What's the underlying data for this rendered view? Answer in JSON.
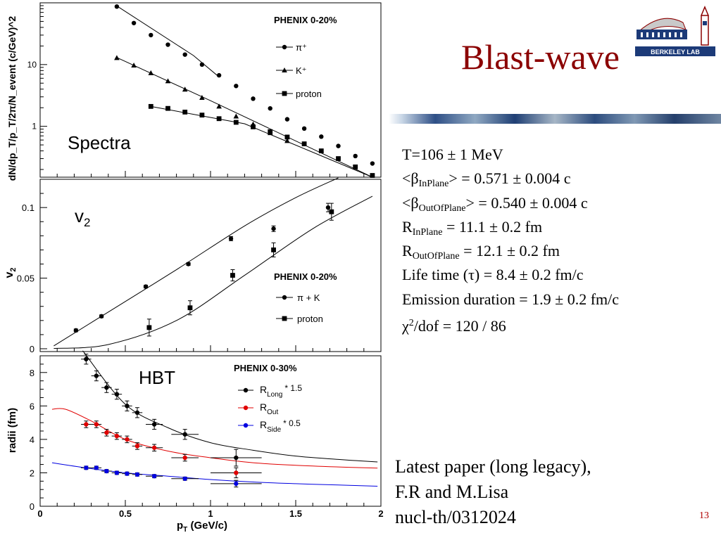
{
  "slide": {
    "title": "Blast-wave",
    "logo_text": "BERKELEY LAB",
    "page_number": "13"
  },
  "parameters": [
    {
      "main": "T=106 ± 1 MeV"
    },
    {
      "pre": "<β",
      "sub": "InPlane",
      "post": "> = 0.571 ± 0.004 c"
    },
    {
      "pre": "<β",
      "sub": "OutOfPlane",
      "post": "> = 0.540 ± 0.004 c"
    },
    {
      "pre": "R",
      "sub": "InPlane",
      "post": " = 11.1 ± 0.2 fm"
    },
    {
      "pre": "R",
      "sub": "OutOfPlane",
      "post": " = 12.1 ± 0.2 fm"
    },
    {
      "main": "Life time (τ) = 8.4 ± 0.2 fm/c"
    },
    {
      "main": "Emission duration = 1.9 ± 0.2 fm/c"
    },
    {
      "pre": "χ",
      "sup": "2",
      "post": "/dof = 120 / 86"
    }
  ],
  "paper_note": [
    "Latest paper (long legacy),",
    "F.R and M.Lisa",
    "nucl-th/0312024"
  ],
  "colors": {
    "title": "#8b0000",
    "page_number": "#b00000",
    "red_series": "#e00000",
    "blue_series": "#0000e0"
  },
  "chart_data": [
    {
      "type": "scatter",
      "label": "Spectra",
      "legend_title": "PHENIX 0-20%",
      "legend_position": "top-right",
      "ylabel": "dN/dp_T/p_T/2π/N_event (c/GeV)^2",
      "yscale": "log",
      "xlim": [
        0,
        2
      ],
      "ylim": [
        0.15,
        100
      ],
      "y_ticks": [
        {
          "v": 1,
          "label": "1"
        },
        {
          "v": 10,
          "label": "10"
        }
      ],
      "series": [
        {
          "name": "π⁺",
          "marker": "circle",
          "x": [
            0.45,
            0.55,
            0.65,
            0.75,
            0.85,
            0.95,
            1.05,
            1.15,
            1.25,
            1.35,
            1.45,
            1.55,
            1.65,
            1.75,
            1.85,
            1.95
          ],
          "y": [
            87,
            47,
            30,
            21,
            14.5,
            10.0,
            6.7,
            4.5,
            2.8,
            1.95,
            1.3,
            0.92,
            0.68,
            0.48,
            0.33,
            0.25
          ]
        },
        {
          "name": "K⁺",
          "marker": "triangle",
          "x": [
            0.45,
            0.55,
            0.65,
            0.75,
            0.85,
            0.95,
            1.05,
            1.15,
            1.25,
            1.35,
            1.45
          ],
          "y": [
            12.8,
            9.7,
            7.3,
            5.4,
            3.95,
            2.9,
            2.1,
            1.45,
            1.08,
            0.78,
            0.58
          ]
        },
        {
          "name": "proton",
          "marker": "square",
          "x": [
            0.65,
            0.75,
            0.85,
            0.95,
            1.05,
            1.15,
            1.25,
            1.35,
            1.45,
            1.55,
            1.65,
            1.75,
            1.85,
            1.95
          ],
          "y": [
            2.1,
            1.95,
            1.7,
            1.52,
            1.33,
            1.16,
            0.98,
            0.82,
            0.67,
            0.52,
            0.4,
            0.3,
            0.22,
            0.16
          ]
        }
      ],
      "fit_lines": [
        {
          "series": "π⁺",
          "x": [
            0.45,
            0.9,
            1.05
          ],
          "y": [
            89,
            14,
            6.3
          ]
        },
        {
          "series": "K⁺",
          "x": [
            0.45,
            1.0,
            1.95
          ],
          "y": [
            13,
            2.6,
            0.15
          ]
        },
        {
          "series": "proton",
          "x": [
            0.65,
            1.2,
            1.95
          ],
          "y": [
            2.1,
            1.1,
            0.15
          ]
        }
      ]
    },
    {
      "type": "scatter",
      "label": "v",
      "label_sub": "2",
      "legend_title": "PHENIX 0-20%",
      "legend_position": "bottom-right",
      "ylabel": "v",
      "ylabel_sub": "2",
      "xlim": [
        0,
        2
      ],
      "ylim": [
        -0.002,
        0.12
      ],
      "y_ticks": [
        {
          "v": 0,
          "label": "0"
        },
        {
          "v": 0.05,
          "label": "0.05"
        },
        {
          "v": 0.1,
          "label": "0.1"
        }
      ],
      "series": [
        {
          "name": "π + K",
          "marker": "circle",
          "x": [
            0.21,
            0.36,
            0.62,
            0.87,
            1.12,
            1.37,
            1.69
          ],
          "y": [
            0.013,
            0.023,
            0.044,
            0.06,
            0.078,
            0.085,
            0.1
          ],
          "err": [
            0.001,
            0.001,
            0.001,
            0.001,
            0.0015,
            0.002,
            0.003
          ]
        },
        {
          "name": "proton",
          "marker": "square",
          "x": [
            0.64,
            0.88,
            1.13,
            1.37,
            1.71
          ],
          "y": [
            0.015,
            0.029,
            0.052,
            0.07,
            0.097
          ],
          "err": [
            0.006,
            0.005,
            0.004,
            0.005,
            0.006
          ]
        }
      ],
      "fit_lines": [
        {
          "series": "π + K",
          "x": [
            0.08,
            0.4,
            0.8,
            1.2,
            1.5,
            1.75
          ],
          "y": [
            0.002,
            0.026,
            0.056,
            0.087,
            0.107,
            0.121
          ]
        },
        {
          "series": "proton",
          "x": [
            0.08,
            0.4,
            0.8,
            1.2,
            1.6,
            1.95
          ],
          "y": [
            0.0002,
            0.003,
            0.02,
            0.052,
            0.085,
            0.108
          ]
        }
      ]
    },
    {
      "type": "scatter",
      "label": "HBT",
      "legend_title": "PHENIX 0-30%",
      "legend_position": "top-right",
      "xlabel": "p",
      "xlabel_sub": "T",
      "xlabel_post": " (GeV/c)",
      "ylabel": "radii (fm)",
      "xlim": [
        0,
        2
      ],
      "ylim": [
        0,
        9
      ],
      "x_ticks": [
        {
          "v": 0,
          "label": "0"
        },
        {
          "v": 0.5,
          "label": "0.5"
        },
        {
          "v": 1,
          "label": "1"
        },
        {
          "v": 1.5,
          "label": "1.5"
        },
        {
          "v": 2,
          "label": "2"
        }
      ],
      "y_ticks": [
        {
          "v": 0,
          "label": "0"
        },
        {
          "v": 2,
          "label": "2"
        },
        {
          "v": 4,
          "label": "4"
        },
        {
          "v": 6,
          "label": "6"
        },
        {
          "v": 8,
          "label": "8"
        }
      ],
      "series": [
        {
          "name": "R",
          "name_sub": "Long",
          "name_post": "* 1.5",
          "color": "#000000",
          "x": [
            0.27,
            0.33,
            0.39,
            0.45,
            0.51,
            0.57,
            0.67,
            0.85,
            1.15
          ],
          "y": [
            8.8,
            7.8,
            7.1,
            6.7,
            6.0,
            5.6,
            4.9,
            4.3,
            2.9
          ],
          "err": [
            0.3,
            0.3,
            0.3,
            0.3,
            0.3,
            0.3,
            0.3,
            0.3,
            0.5
          ],
          "xerr": [
            0.03,
            0.03,
            0.03,
            0.03,
            0.03,
            0.03,
            0.05,
            0.08,
            0.15
          ]
        },
        {
          "name": "R",
          "name_sub": "Out",
          "name_post": "",
          "color": "#e00000",
          "x": [
            0.27,
            0.33,
            0.39,
            0.45,
            0.51,
            0.57,
            0.67,
            0.85,
            1.15
          ],
          "y": [
            4.9,
            4.9,
            4.4,
            4.2,
            4.0,
            3.6,
            3.5,
            2.9,
            2.0
          ],
          "err": [
            0.2,
            0.2,
            0.2,
            0.2,
            0.2,
            0.2,
            0.2,
            0.2,
            0.3
          ],
          "xerr": [
            0.03,
            0.03,
            0.03,
            0.03,
            0.03,
            0.03,
            0.05,
            0.08,
            0.15
          ]
        },
        {
          "name": "R",
          "name_sub": "Side",
          "name_post": "* 0.5",
          "color": "#0000e0",
          "x": [
            0.27,
            0.33,
            0.39,
            0.45,
            0.51,
            0.57,
            0.67,
            0.85,
            1.15
          ],
          "y": [
            2.3,
            2.3,
            2.1,
            2.0,
            1.95,
            1.9,
            1.8,
            1.65,
            1.35
          ],
          "err": [
            0.1,
            0.1,
            0.1,
            0.1,
            0.1,
            0.1,
            0.1,
            0.1,
            0.2
          ],
          "xerr": [
            0.03,
            0.03,
            0.03,
            0.03,
            0.03,
            0.03,
            0.05,
            0.08,
            0.15
          ]
        }
      ],
      "fit_lines": [
        {
          "series": "R Long",
          "x": [
            0.25,
            0.5,
            0.75,
            1.0,
            1.25,
            1.5,
            1.75,
            1.98
          ],
          "y": [
            9.3,
            6.1,
            4.7,
            3.8,
            3.35,
            3.0,
            2.8,
            2.65
          ]
        },
        {
          "series": "R Out",
          "x": [
            0.07,
            0.15,
            0.3,
            0.5,
            0.75,
            1.0,
            1.25,
            1.5,
            1.75,
            1.98
          ],
          "y": [
            5.8,
            5.8,
            5.1,
            4.0,
            3.3,
            2.9,
            2.6,
            2.45,
            2.35,
            2.28
          ]
        },
        {
          "series": "R Side",
          "x": [
            0.07,
            0.3,
            0.5,
            0.75,
            1.0,
            1.25,
            1.5,
            1.75,
            1.98
          ],
          "y": [
            2.6,
            2.25,
            2.0,
            1.8,
            1.6,
            1.45,
            1.35,
            1.27,
            1.2
          ]
        }
      ]
    }
  ]
}
